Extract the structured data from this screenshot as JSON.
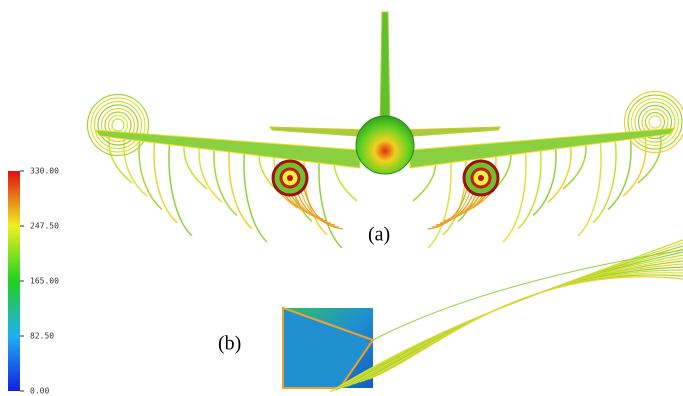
{
  "colorbar": {
    "ticks": [
      {
        "value": 0,
        "label": "0.00"
      },
      {
        "value": 82.5,
        "label": "82.50"
      },
      {
        "value": 165,
        "label": "165.00"
      },
      {
        "value": 247.5,
        "label": "247.50"
      },
      {
        "value": 330,
        "label": "330.00"
      }
    ]
  },
  "panels": [
    {
      "label": "(a)"
    },
    {
      "label": "(b)"
    }
  ]
}
